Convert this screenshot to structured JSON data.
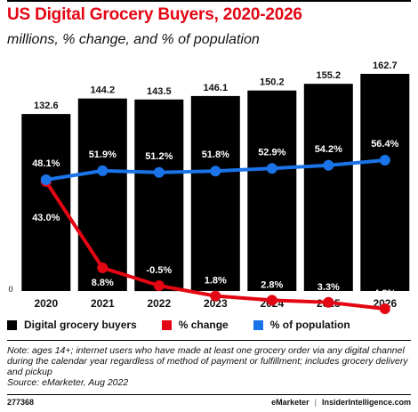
{
  "header": {
    "title": "US Digital Grocery Buyers, 2020-2026",
    "subtitle": "millions, % change, and % of population"
  },
  "chart_data": {
    "type": "bar",
    "categories": [
      "2020",
      "2021",
      "2022",
      "2023",
      "2024",
      "2025",
      "2026"
    ],
    "series": [
      {
        "name": "Digital grocery buyers",
        "values": [
          132.6,
          144.2,
          143.5,
          146.1,
          150.2,
          155.2,
          162.7
        ],
        "labels": [
          "132.6",
          "144.2",
          "143.5",
          "146.1",
          "150.2",
          "155.2",
          "162.7"
        ],
        "color": "#000000"
      },
      {
        "name": "% change",
        "values": [
          43.0,
          8.8,
          -0.5,
          1.8,
          2.8,
          3.3,
          4.8
        ],
        "labels": [
          "43.0%",
          "8.8%",
          "-0.5%",
          "1.8%",
          "2.8%",
          "3.3%",
          "4.8%"
        ],
        "color": "#e30613"
      },
      {
        "name": "% of population",
        "values": [
          48.1,
          51.9,
          51.2,
          51.8,
          52.9,
          54.2,
          56.4
        ],
        "labels": [
          "48.1%",
          "51.9%",
          "51.2%",
          "51.8%",
          "52.9%",
          "54.2%",
          "56.4%"
        ],
        "color": "#1a73e8"
      }
    ],
    "baseline_label": "0",
    "grid": false,
    "legend_position": "bottom"
  },
  "legend": [
    {
      "label": "Digital grocery buyers",
      "color": "#000000"
    },
    {
      "label": "% change",
      "color": "#e30613"
    },
    {
      "label": "% of population",
      "color": "#1a73e8"
    }
  ],
  "note": {
    "text": "Note: ages 14+; internet users who have made at least one grocery order via any digital channel during the calendar year regardless of method of payment or fulfillment; includes grocery delivery and pickup",
    "source": "Source: eMarketer, Aug 2022"
  },
  "footer": {
    "id": "277368",
    "brand_primary": "eMarketer",
    "separator": "|",
    "brand_secondary": "InsiderIntelligence.com"
  },
  "colors": {
    "title": "#e30613",
    "bars": "#000000",
    "change_line": "#e30613",
    "population_line": "#1a73e8"
  }
}
